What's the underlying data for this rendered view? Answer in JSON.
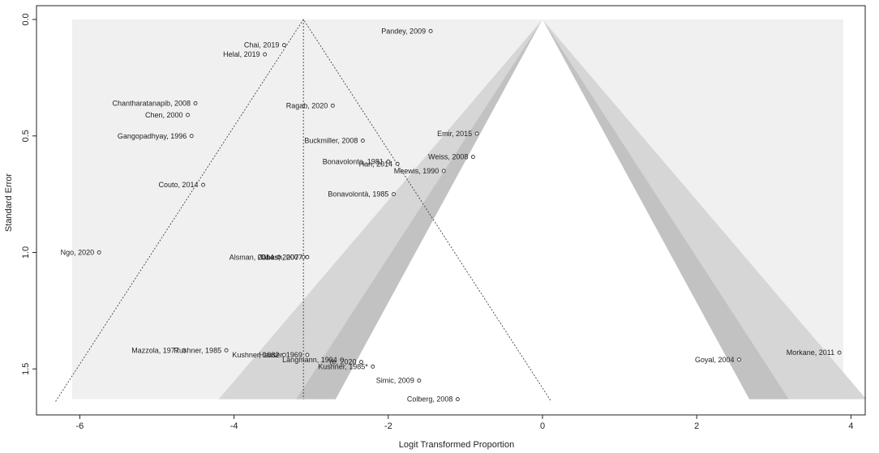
{
  "chart_data": {
    "type": "scatter",
    "subtype": "contour-enhanced funnel plot",
    "xlabel": "Logit Transformed Proportion",
    "ylabel": "Standard Error",
    "xlim": [
      -6.3,
      4.0
    ],
    "ylim": [
      0.0,
      1.63
    ],
    "y_reversed": true,
    "x_ticks": [
      -6,
      -4,
      -2,
      0,
      2,
      4
    ],
    "x_tick_labels": [
      "-6",
      "-4",
      "-2",
      "0",
      "2",
      "4"
    ],
    "y_ticks": [
      0.0,
      0.5,
      1.0,
      1.5
    ],
    "y_tick_labels": [
      "0.0",
      "0.5",
      "1.0",
      "1.5"
    ],
    "pooled_estimate": -3.1,
    "funnel_apex_x": -3.1,
    "contour_center": 0,
    "contour_z": [
      1.645,
      1.96,
      2.576
    ],
    "colors": {
      "background": "#f0f0f0",
      "contour_90": "#d6d6d6",
      "contour_95": "#c2c2c2",
      "contour_99": "#ffffff",
      "points": "#333333",
      "lines": "#444444"
    },
    "points": [
      {
        "label": "Pandey, 2009",
        "x": -1.45,
        "y": 0.05
      },
      {
        "label": "Chai, 2019",
        "x": -3.35,
        "y": 0.11
      },
      {
        "label": "Helal, 2019",
        "x": -3.6,
        "y": 0.15
      },
      {
        "label": "Chantharatanapib, 2008",
        "x": -4.5,
        "y": 0.36
      },
      {
        "label": "Ragab, 2020",
        "x": -2.72,
        "y": 0.37
      },
      {
        "label": "Chen, 2000",
        "x": -4.6,
        "y": 0.41
      },
      {
        "label": "Gangopadhyay, 1996",
        "x": -4.55,
        "y": 0.5
      },
      {
        "label": "Emir, 2015",
        "x": -0.85,
        "y": 0.49
      },
      {
        "label": "Buckmiller, 2008",
        "x": -2.33,
        "y": 0.52
      },
      {
        "label": "Weiss, 2008",
        "x": -0.9,
        "y": 0.59
      },
      {
        "label": "Bonavolonta, 1981",
        "x": -2.0,
        "y": 0.61
      },
      {
        "label": "Han, 2014",
        "x": -1.88,
        "y": 0.62
      },
      {
        "label": "Meewis, 1990",
        "x": -1.28,
        "y": 0.65
      },
      {
        "label": "Couto, 2014",
        "x": -4.4,
        "y": 0.71
      },
      {
        "label": "Bonavolontà, 1985",
        "x": -1.93,
        "y": 0.75
      },
      {
        "label": "Ngo, 2020",
        "x": -5.75,
        "y": 1.0
      },
      {
        "label": "Alsman, 2014",
        "x": -3.42,
        "y": 1.02
      },
      {
        "label": "Ghosh, 2007",
        "x": -3.05,
        "y": 1.02
      },
      {
        "label": "Casas, 2007",
        "x": -3.1,
        "y": 1.02
      },
      {
        "label": "Mazzola, 1977",
        "x": -4.65,
        "y": 1.42
      },
      {
        "label": "Rushner, 1985",
        "x": -4.1,
        "y": 1.42
      },
      {
        "label": "Kushner, 1982",
        "x": -3.35,
        "y": 1.44
      },
      {
        "label": "Hauser, 1969",
        "x": -3.05,
        "y": 1.44
      },
      {
        "label": "Langmann, 1994",
        "x": -2.6,
        "y": 1.46
      },
      {
        "label": "Ye, 2020",
        "x": -2.35,
        "y": 1.47
      },
      {
        "label": "Kushner, 1985*",
        "x": -2.2,
        "y": 1.49
      },
      {
        "label": "Simic, 2009",
        "x": -1.6,
        "y": 1.55
      },
      {
        "label": "Colberg, 2008",
        "x": -1.1,
        "y": 1.63
      },
      {
        "label": "Goyal, 2004",
        "x": 2.55,
        "y": 1.46
      },
      {
        "label": "Morkane, 2011",
        "x": 3.85,
        "y": 1.43
      }
    ]
  }
}
